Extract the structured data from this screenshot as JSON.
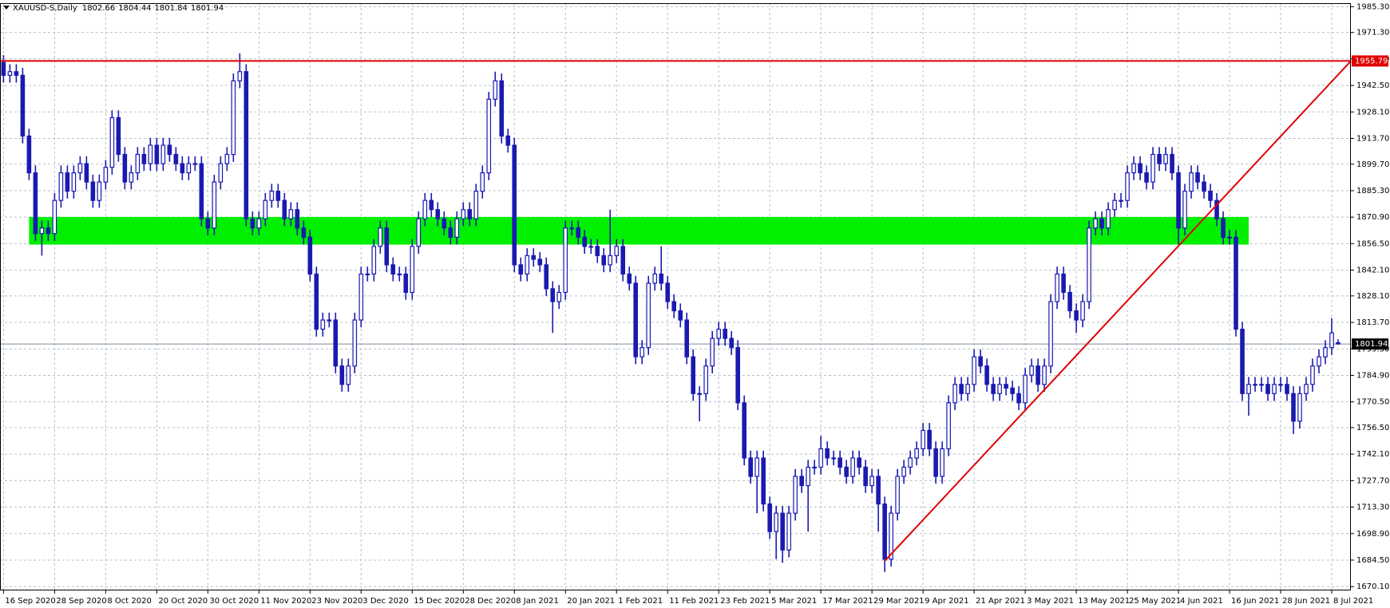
{
  "chart_data": {
    "type": "candlestick",
    "title": "XAUUSD-S,Daily",
    "categories": [
      "16 Sep 2020",
      null,
      null,
      null,
      null,
      null,
      null,
      null,
      "28 Sep 2020",
      null,
      null,
      null,
      null,
      null,
      null,
      null,
      "8 Oct 2020",
      null,
      null,
      null,
      null,
      null,
      null,
      null,
      "20 Oct 2020",
      null,
      null,
      null,
      null,
      null,
      null,
      null,
      "30 Oct 2020",
      null,
      null,
      null,
      null,
      null,
      null,
      null,
      "11 Nov 2020",
      null,
      null,
      null,
      null,
      null,
      null,
      null,
      "23 Nov 2020",
      null,
      null,
      null,
      null,
      null,
      null,
      null,
      "3 Dec 2020",
      null,
      null,
      null,
      null,
      null,
      null,
      null,
      "15 Dec 2020",
      null,
      null,
      null,
      null,
      null,
      null,
      null,
      "28 Dec 2020",
      null,
      null,
      null,
      null,
      null,
      null,
      null,
      "8 Jan 2021",
      null,
      null,
      null,
      null,
      null,
      null,
      null,
      "20 Jan 2021",
      null,
      null,
      null,
      null,
      null,
      null,
      null,
      "1 Feb 2021",
      null,
      null,
      null,
      null,
      null,
      null,
      null,
      "11 Feb 2021",
      null,
      null,
      null,
      null,
      null,
      null,
      null,
      "23 Feb 2021",
      null,
      null,
      null,
      null,
      null,
      null,
      null,
      "5 Mar 2021",
      null,
      null,
      null,
      null,
      null,
      null,
      null,
      "17 Mar 2021",
      null,
      null,
      null,
      null,
      null,
      null,
      null,
      "29 Mar 2021",
      null,
      null,
      null,
      null,
      null,
      null,
      null,
      "9 Apr 2021",
      null,
      null,
      null,
      null,
      null,
      null,
      null,
      "21 Apr 2021",
      null,
      null,
      null,
      null,
      null,
      null,
      null,
      "3 May 2021",
      null,
      null,
      null,
      null,
      null,
      null,
      null,
      "13 May 2021",
      null,
      null,
      null,
      null,
      null,
      null,
      null,
      "25 May 2021",
      null,
      null,
      null,
      null,
      null,
      null,
      null,
      "4 Jun 2021",
      null,
      null,
      null,
      null,
      null,
      null,
      null,
      "16 Jun 2021",
      null,
      null,
      null,
      null,
      null,
      null,
      null,
      "28 Jun 2021",
      null,
      null,
      null,
      null,
      null,
      null,
      null,
      "8 Jul 2021",
      null
    ],
    "open": [
      1955,
      1948,
      1950,
      1948,
      1915,
      1895,
      1862,
      1865,
      1862,
      1880,
      1895,
      1885,
      1895,
      1900,
      1890,
      1880,
      1890,
      1898,
      1925,
      1905,
      1890,
      1895,
      1905,
      1900,
      1910,
      1900,
      1910,
      1905,
      1900,
      1895,
      1900,
      1900,
      1870,
      1865,
      1890,
      1900,
      1905,
      1945,
      1950,
      1870,
      1865,
      1870,
      1880,
      1885,
      1880,
      1870,
      1875,
      1865,
      1860,
      1840,
      1810,
      1815,
      1815,
      1790,
      1780,
      1790,
      1815,
      1840,
      1840,
      1855,
      1865,
      1845,
      1840,
      1840,
      1830,
      1855,
      1870,
      1880,
      1875,
      1870,
      1865,
      1860,
      1870,
      1875,
      1870,
      1885,
      1895,
      1935,
      1945,
      1915,
      1910,
      1845,
      1840,
      1850,
      1848,
      1845,
      1832,
      1825,
      1830,
      1865,
      1865,
      1860,
      1855,
      1855,
      1850,
      1845,
      1850,
      1855,
      1840,
      1835,
      1795,
      1800,
      1835,
      1840,
      1835,
      1825,
      1820,
      1815,
      1795,
      1775,
      1775,
      1790,
      1805,
      1810,
      1805,
      1800,
      1770,
      1740,
      1730,
      1740,
      1715,
      1700,
      1710,
      1690,
      1710,
      1730,
      1725,
      1735,
      1735,
      1745,
      1740,
      1740,
      1735,
      1730,
      1740,
      1735,
      1725,
      1730,
      1715,
      1685,
      1710,
      1730,
      1735,
      1740,
      1745,
      1755,
      1745,
      1730,
      1745,
      1770,
      1780,
      1775,
      1780,
      1795,
      1790,
      1780,
      1775,
      1780,
      1778,
      1775,
      1770,
      1785,
      1790,
      1780,
      1790,
      1825,
      1840,
      1830,
      1820,
      1815,
      1825,
      1865,
      1870,
      1865,
      1875,
      1880,
      1880,
      1895,
      1900,
      1895,
      1890,
      1905,
      1900,
      1905,
      1895,
      1865,
      1885,
      1895,
      1890,
      1885,
      1880,
      1870,
      1860,
      1860,
      1810,
      1775,
      1780,
      1780,
      1780,
      1775,
      1780,
      1780,
      1775,
      1760,
      1775,
      1780,
      1790,
      1795,
      1800,
      1802.66
    ],
    "high": [
      1959,
      1954,
      1954,
      1952,
      1919,
      1899,
      1869,
      1869,
      1884,
      1899,
      1899,
      1899,
      1904,
      1904,
      1894,
      1894,
      1902,
      1929,
      1929,
      1909,
      1899,
      1909,
      1909,
      1914,
      1914,
      1914,
      1914,
      1909,
      1904,
      1904,
      1904,
      1904,
      1874,
      1894,
      1904,
      1909,
      1949,
      1960,
      1954,
      1874,
      1874,
      1884,
      1889,
      1889,
      1884,
      1879,
      1879,
      1869,
      1864,
      1844,
      1819,
      1819,
      1819,
      1794,
      1794,
      1819,
      1844,
      1844,
      1859,
      1869,
      1869,
      1849,
      1844,
      1844,
      1859,
      1874,
      1884,
      1884,
      1879,
      1874,
      1869,
      1874,
      1879,
      1879,
      1889,
      1899,
      1939,
      1950,
      1949,
      1919,
      1914,
      1849,
      1854,
      1854,
      1852,
      1849,
      1836,
      1834,
      1869,
      1869,
      1869,
      1864,
      1859,
      1859,
      1854,
      1875,
      1859,
      1859,
      1844,
      1839,
      1804,
      1839,
      1844,
      1855,
      1839,
      1829,
      1824,
      1819,
      1799,
      1779,
      1794,
      1809,
      1814,
      1814,
      1809,
      1804,
      1774,
      1744,
      1744,
      1744,
      1719,
      1714,
      1714,
      1714,
      1734,
      1734,
      1739,
      1739,
      1752,
      1749,
      1744,
      1744,
      1739,
      1744,
      1744,
      1739,
      1734,
      1734,
      1719,
      1714,
      1734,
      1739,
      1744,
      1749,
      1759,
      1759,
      1749,
      1749,
      1774,
      1784,
      1784,
      1784,
      1799,
      1799,
      1794,
      1784,
      1784,
      1784,
      1782,
      1779,
      1789,
      1794,
      1794,
      1794,
      1829,
      1844,
      1844,
      1834,
      1824,
      1829,
      1869,
      1874,
      1874,
      1879,
      1884,
      1884,
      1899,
      1904,
      1904,
      1899,
      1909,
      1909,
      1909,
      1909,
      1899,
      1889,
      1899,
      1899,
      1894,
      1889,
      1884,
      1874,
      1864,
      1864,
      1814,
      1784,
      1784,
      1784,
      1784,
      1784,
      1784,
      1784,
      1779,
      1779,
      1784,
      1794,
      1799,
      1804,
      1816,
      1804.44
    ],
    "low": [
      1944,
      1944,
      1944,
      1911,
      1891,
      1858,
      1850,
      1858,
      1858,
      1876,
      1881,
      1881,
      1891,
      1886,
      1876,
      1876,
      1886,
      1894,
      1901,
      1886,
      1886,
      1891,
      1896,
      1896,
      1896,
      1896,
      1901,
      1896,
      1891,
      1891,
      1896,
      1866,
      1861,
      1861,
      1886,
      1896,
      1901,
      1941,
      1866,
      1861,
      1861,
      1866,
      1876,
      1876,
      1866,
      1866,
      1861,
      1856,
      1836,
      1806,
      1806,
      1811,
      1786,
      1776,
      1776,
      1786,
      1811,
      1836,
      1836,
      1851,
      1841,
      1836,
      1836,
      1826,
      1826,
      1851,
      1866,
      1871,
      1866,
      1861,
      1856,
      1856,
      1866,
      1866,
      1866,
      1881,
      1891,
      1931,
      1911,
      1906,
      1841,
      1836,
      1836,
      1844,
      1841,
      1828,
      1808,
      1821,
      1826,
      1861,
      1856,
      1851,
      1851,
      1846,
      1841,
      1841,
      1846,
      1836,
      1831,
      1791,
      1791,
      1796,
      1831,
      1831,
      1821,
      1816,
      1811,
      1791,
      1771,
      1760,
      1771,
      1786,
      1801,
      1801,
      1796,
      1766,
      1736,
      1726,
      1710,
      1711,
      1696,
      1685,
      1683,
      1686,
      1706,
      1721,
      1700,
      1731,
      1731,
      1736,
      1736,
      1731,
      1726,
      1726,
      1731,
      1721,
      1721,
      1700,
      1678,
      1681,
      1706,
      1726,
      1731,
      1736,
      1741,
      1741,
      1726,
      1726,
      1741,
      1766,
      1771,
      1771,
      1776,
      1786,
      1776,
      1771,
      1771,
      1774,
      1771,
      1766,
      1766,
      1781,
      1776,
      1776,
      1786,
      1821,
      1826,
      1816,
      1808,
      1811,
      1821,
      1861,
      1861,
      1861,
      1871,
      1876,
      1876,
      1891,
      1891,
      1886,
      1886,
      1896,
      1896,
      1891,
      1856,
      1861,
      1881,
      1886,
      1881,
      1876,
      1866,
      1856,
      1856,
      1806,
      1771,
      1763,
      1776,
      1776,
      1771,
      1771,
      1776,
      1771,
      1753,
      1756,
      1771,
      1776,
      1786,
      1791,
      1796,
      1801.84
    ],
    "close": [
      1948,
      1950,
      1948,
      1915,
      1895,
      1862,
      1865,
      1862,
      1880,
      1895,
      1885,
      1895,
      1900,
      1890,
      1880,
      1890,
      1898,
      1925,
      1905,
      1890,
      1895,
      1905,
      1900,
      1910,
      1900,
      1910,
      1905,
      1900,
      1895,
      1900,
      1900,
      1870,
      1865,
      1890,
      1900,
      1905,
      1945,
      1950,
      1870,
      1865,
      1870,
      1880,
      1885,
      1880,
      1870,
      1875,
      1865,
      1860,
      1840,
      1810,
      1815,
      1815,
      1790,
      1780,
      1790,
      1815,
      1840,
      1840,
      1855,
      1865,
      1845,
      1840,
      1840,
      1830,
      1855,
      1870,
      1880,
      1875,
      1870,
      1865,
      1860,
      1870,
      1875,
      1870,
      1885,
      1895,
      1935,
      1945,
      1915,
      1910,
      1845,
      1840,
      1850,
      1848,
      1845,
      1832,
      1825,
      1830,
      1865,
      1865,
      1860,
      1855,
      1855,
      1850,
      1845,
      1850,
      1855,
      1840,
      1835,
      1795,
      1800,
      1835,
      1840,
      1835,
      1825,
      1820,
      1815,
      1795,
      1775,
      1775,
      1790,
      1805,
      1810,
      1805,
      1800,
      1770,
      1740,
      1730,
      1740,
      1715,
      1700,
      1710,
      1690,
      1710,
      1730,
      1725,
      1735,
      1735,
      1745,
      1740,
      1740,
      1735,
      1730,
      1740,
      1735,
      1725,
      1730,
      1715,
      1685,
      1710,
      1730,
      1735,
      1740,
      1745,
      1755,
      1745,
      1730,
      1745,
      1770,
      1780,
      1775,
      1780,
      1795,
      1790,
      1780,
      1775,
      1780,
      1778,
      1775,
      1770,
      1785,
      1790,
      1780,
      1790,
      1825,
      1840,
      1830,
      1820,
      1815,
      1825,
      1865,
      1870,
      1865,
      1875,
      1880,
      1880,
      1895,
      1900,
      1895,
      1890,
      1905,
      1900,
      1905,
      1895,
      1865,
      1885,
      1895,
      1890,
      1885,
      1880,
      1870,
      1860,
      1860,
      1810,
      1775,
      1780,
      1780,
      1780,
      1775,
      1780,
      1780,
      1775,
      1760,
      1775,
      1780,
      1790,
      1795,
      1800,
      1808,
      1801.94
    ],
    "color": "#1a1ab0",
    "xlim": [
      -0.55,
      211
    ],
    "ylim": [
      1668,
      1987.2
    ],
    "yticks": [
      {
        "value": 1985.3,
        "label": "1985.30"
      },
      {
        "value": 1971.3,
        "label": "1971.30"
      },
      {
        "value": 1956.9,
        "label": "1956.90"
      },
      {
        "value": 1942.5,
        "label": "1942.50"
      },
      {
        "value": 1928.1,
        "label": "1928.10"
      },
      {
        "value": 1913.7,
        "label": "1913.70"
      },
      {
        "value": 1899.7,
        "label": "1899.70"
      },
      {
        "value": 1885.3,
        "label": "1885.30"
      },
      {
        "value": 1870.9,
        "label": "1870.90"
      },
      {
        "value": 1856.5,
        "label": "1856.50"
      },
      {
        "value": 1842.1,
        "label": "1842.10"
      },
      {
        "value": 1828.1,
        "label": "1828.10"
      },
      {
        "value": 1813.7,
        "label": "1813.70"
      },
      {
        "value": 1799.3,
        "label": "1799.30"
      },
      {
        "value": 1784.9,
        "label": "1784.90"
      },
      {
        "value": 1770.5,
        "label": "1770.50"
      },
      {
        "value": 1756.5,
        "label": "1756.50"
      },
      {
        "value": 1742.1,
        "label": "1742.10"
      },
      {
        "value": 1727.7,
        "label": "1727.70"
      },
      {
        "value": 1713.3,
        "label": "1713.30"
      },
      {
        "value": 1698.9,
        "label": "1698.90"
      },
      {
        "value": 1684.5,
        "label": "1684.50"
      },
      {
        "value": 1670.1,
        "label": "1670.10"
      }
    ],
    "grid": true,
    "resistance": {
      "value": 1955.79,
      "color": "#e00000"
    },
    "zone": {
      "from": 1856,
      "to": 1871,
      "start": 4,
      "end": 195,
      "color": "#00f000"
    },
    "trendline": {
      "x": [
        138,
        211
      ],
      "y": [
        1684,
        1955.79
      ],
      "color": "#e00000"
    }
  }
}
